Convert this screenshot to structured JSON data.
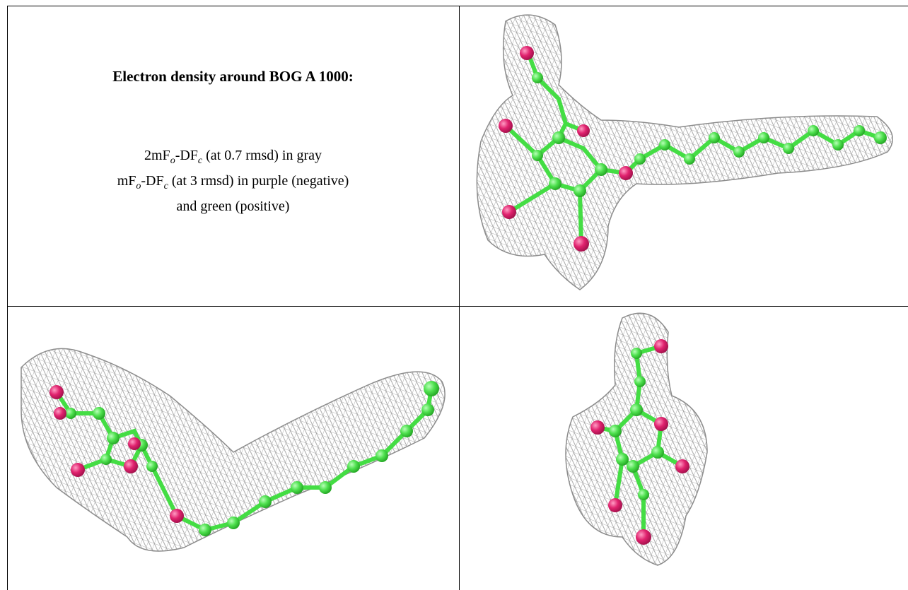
{
  "caption": {
    "title": "Electron density around BOG A 1000:",
    "lines": [
      [
        {
          "text": "2mF"
        },
        {
          "text": "o",
          "sub": true
        },
        {
          "text": "-DF"
        },
        {
          "text": "c",
          "sub": true
        },
        {
          "text": " (at 0.7 rmsd) in gray"
        }
      ],
      [
        {
          "text": "mF"
        },
        {
          "text": "o",
          "sub": true
        },
        {
          "text": "-DF"
        },
        {
          "text": "c",
          "sub": true
        },
        {
          "text": " (at 3 rmsd) in purple (negative)"
        }
      ],
      [
        {
          "text": "and green (positive)"
        }
      ]
    ]
  }
}
